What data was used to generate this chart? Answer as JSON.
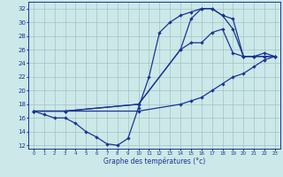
{
  "title": "Graphe des températures (°c)",
  "bg_color": "#cce8e8",
  "line_color": "#1a3595",
  "xlim": [
    -0.5,
    23.5
  ],
  "ylim": [
    11.5,
    33
  ],
  "xticks": [
    0,
    1,
    2,
    3,
    4,
    5,
    6,
    7,
    8,
    9,
    10,
    11,
    12,
    13,
    14,
    15,
    16,
    17,
    18,
    19,
    20,
    21,
    22,
    23
  ],
  "yticks": [
    12,
    14,
    16,
    18,
    20,
    22,
    24,
    26,
    28,
    30,
    32
  ],
  "curve1_x": [
    0,
    1,
    2,
    3,
    4,
    5,
    6,
    7,
    8,
    9,
    10,
    11,
    12,
    13,
    14,
    15,
    16,
    17,
    18,
    19,
    20,
    21,
    22,
    23
  ],
  "curve1_y": [
    17,
    16.5,
    16,
    16,
    15.2,
    14,
    13.2,
    12.2,
    12,
    13,
    17.5,
    22,
    28.5,
    30,
    31,
    31.5,
    32,
    32,
    31,
    29,
    25,
    25,
    25,
    25
  ],
  "curve2_x": [
    0,
    3,
    10,
    14,
    15,
    16,
    17,
    18,
    19,
    20,
    21,
    22,
    23
  ],
  "curve2_y": [
    17,
    17,
    18,
    26,
    30.5,
    32,
    32,
    31,
    30.5,
    25,
    25,
    25.5,
    25
  ],
  "curve3_x": [
    0,
    3,
    10,
    14,
    15,
    16,
    17,
    18,
    19,
    20,
    21,
    22,
    23
  ],
  "curve3_y": [
    17,
    17,
    18,
    26,
    27,
    27,
    28.5,
    29,
    25.5,
    25,
    25,
    25,
    25
  ],
  "curve4_x": [
    0,
    3,
    10,
    14,
    15,
    16,
    17,
    18,
    19,
    20,
    21,
    22,
    23
  ],
  "curve4_y": [
    17,
    17,
    17,
    18,
    18.5,
    19,
    20,
    21,
    22,
    22.5,
    23.5,
    24.5,
    25
  ],
  "marker": "D",
  "marker_size": 2.2,
  "linewidth": 0.9
}
